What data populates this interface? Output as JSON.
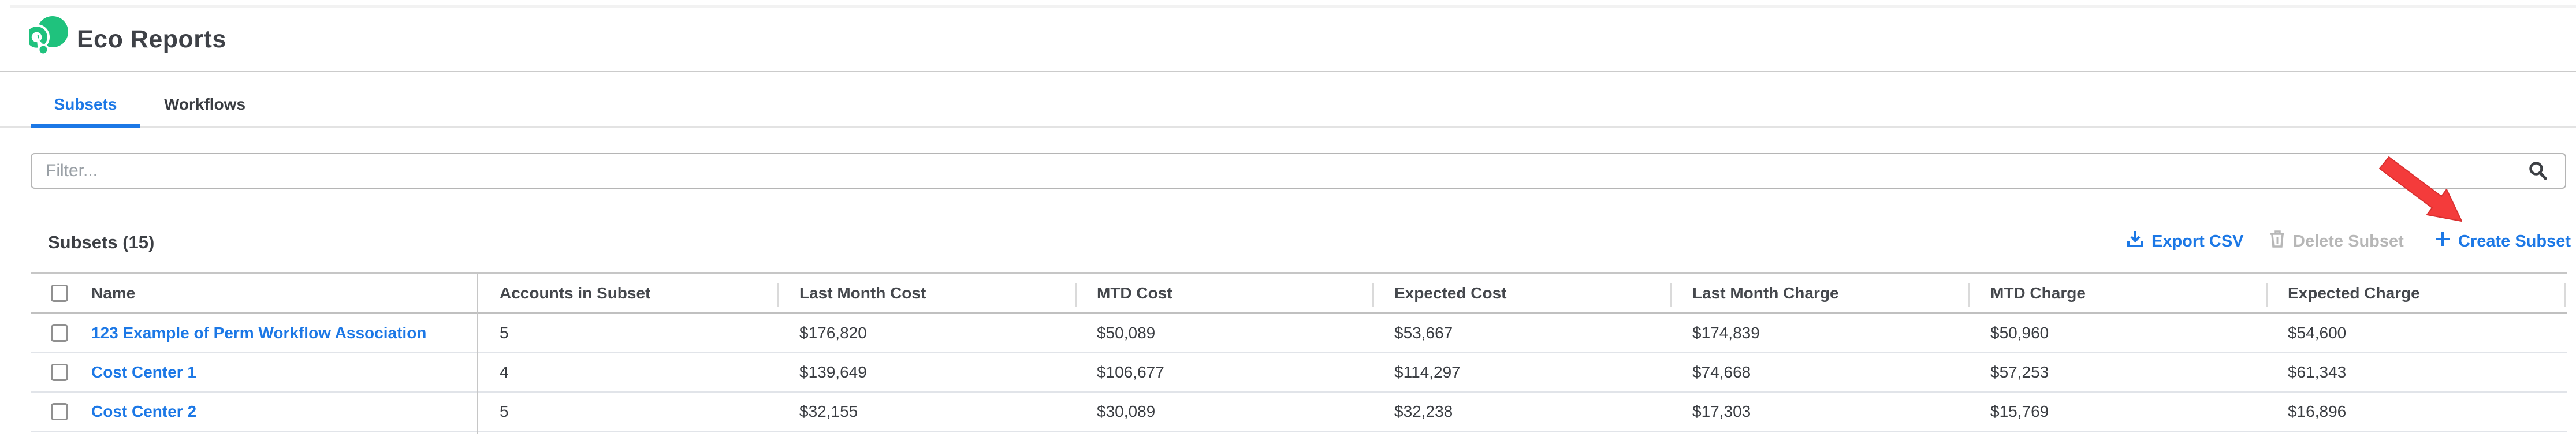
{
  "page": {
    "title": "Eco Reports"
  },
  "tabs": [
    {
      "label": "Subsets",
      "active": true
    },
    {
      "label": "Workflows",
      "active": false
    }
  ],
  "filter": {
    "placeholder": "Filter...",
    "value": ""
  },
  "toolbar": {
    "heading": "Subsets (15)",
    "export_label": "Export CSV",
    "delete_label": "Delete Subset",
    "create_label": "Create Subset"
  },
  "table": {
    "columns": [
      "Name",
      "Accounts in Subset",
      "Last Month Cost",
      "MTD Cost",
      "Expected Cost",
      "Last Month Charge",
      "MTD Charge",
      "Expected Charge"
    ],
    "rows": [
      {
        "name": "123 Example of Perm Workflow Association",
        "accounts": "5",
        "last_month_cost": "$176,820",
        "mtd_cost": "$50,089",
        "expected_cost": "$53,667",
        "last_month_charge": "$174,839",
        "mtd_charge": "$50,960",
        "expected_charge": "$54,600"
      },
      {
        "name": "Cost Center 1",
        "accounts": "4",
        "last_month_cost": "$139,649",
        "mtd_cost": "$106,677",
        "expected_cost": "$114,297",
        "last_month_charge": "$74,668",
        "mtd_charge": "$57,253",
        "expected_charge": "$61,343"
      },
      {
        "name": "Cost Center 2",
        "accounts": "5",
        "last_month_cost": "$32,155",
        "mtd_cost": "$30,089",
        "expected_cost": "$32,238",
        "last_month_charge": "$17,303",
        "mtd_charge": "$15,769",
        "expected_charge": "$16,896"
      }
    ]
  },
  "icons": {
    "logo": "spot-eco-logo",
    "search": "magnifier",
    "export": "download-tray",
    "delete": "trash-can",
    "create": "plus",
    "annotation": "red-arrow-pointing-to-create-subset"
  },
  "colors": {
    "accent_blue": "#1c78e6",
    "brand_green": "#1fc27d",
    "arrow_red": "#f43b3b",
    "disabled_gray": "#b7b7b7",
    "text_dark": "#3b3e43",
    "border_gray": "#c6c6c6",
    "row_border": "#e1e4e9"
  }
}
